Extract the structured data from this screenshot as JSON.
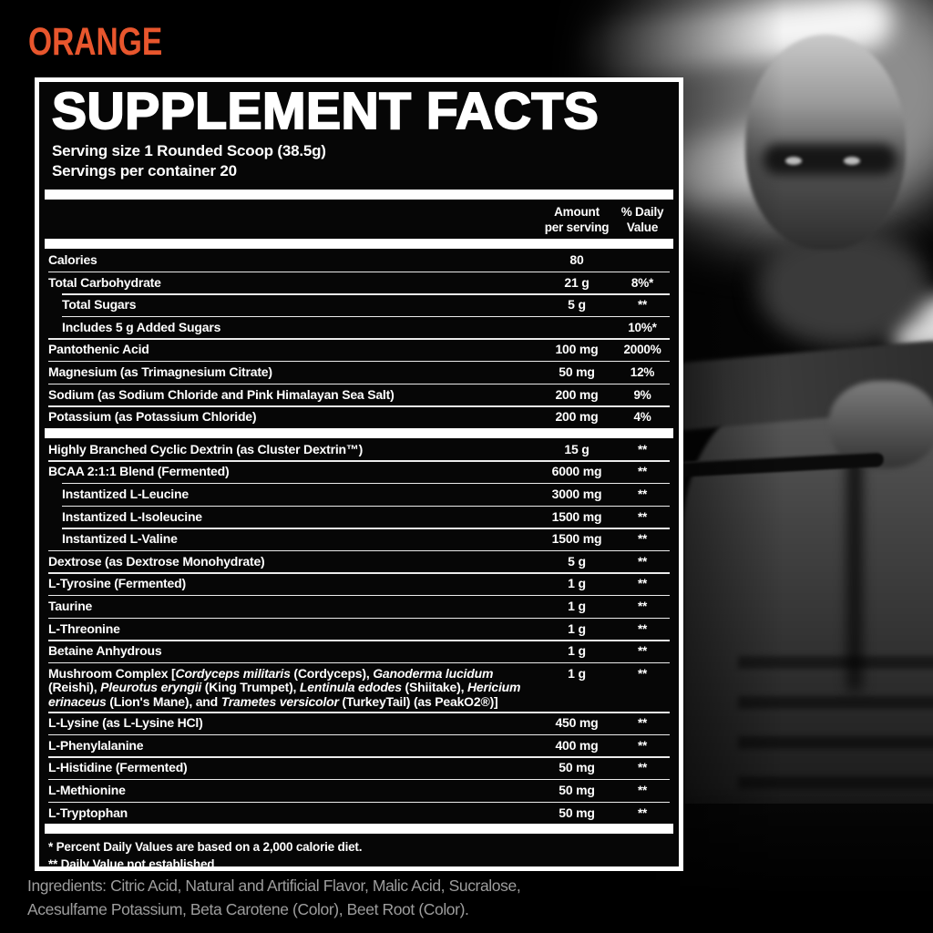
{
  "flavor": "ORANGE",
  "colors": {
    "accent_orange": "#E8562D",
    "ingredients_gray": "#9D9D9D",
    "panel_border": "#FFFFFF"
  },
  "panel": {
    "title": "SUPPLEMENT FACTS",
    "serving_size": "Serving size 1 Rounded Scoop (38.5g)",
    "servings_per_container": "Servings per container 20",
    "header": {
      "amount_line1": "Amount",
      "amount_line2": "per serving",
      "dv_line1": "% Daily",
      "dv_line2": "Value"
    },
    "rows": [
      {
        "name": "Calories",
        "amount": "80",
        "dv": "",
        "indent": false
      },
      {
        "name": "Total Carbohydrate",
        "amount": "21 g",
        "dv": "8%*",
        "indent": false
      },
      {
        "name": "Total Sugars",
        "amount": "5 g",
        "dv": "**",
        "indent": true
      },
      {
        "name": "Includes 5 g Added Sugars",
        "amount": "",
        "dv": "10%*",
        "indent": true
      },
      {
        "name": "Pantothenic Acid",
        "amount": "100 mg",
        "dv": "2000%",
        "indent": false
      },
      {
        "name": "Magnesium (as Trimagnesium Citrate)",
        "amount": "50 mg",
        "dv": "12%",
        "indent": false
      },
      {
        "name": "Sodium (as Sodium Chloride and Pink Himalayan Sea Salt)",
        "amount": "200 mg",
        "dv": "9%",
        "indent": false
      },
      {
        "name": "Potassium (as Potassium Chloride)",
        "amount": "200 mg",
        "dv": "4%",
        "indent": false,
        "bar_after": true
      },
      {
        "name": "Highly Branched Cyclic Dextrin (as Cluster Dextrin™)",
        "amount": "15 g",
        "dv": "**",
        "indent": false
      },
      {
        "name": "BCAA 2:1:1 Blend (Fermented)",
        "amount": "6000 mg",
        "dv": "**",
        "indent": false
      },
      {
        "name": "Instantized L-Leucine",
        "amount": "3000 mg",
        "dv": "**",
        "indent": true
      },
      {
        "name": "Instantized L-Isoleucine",
        "amount": "1500 mg",
        "dv": "**",
        "indent": true
      },
      {
        "name": "Instantized L-Valine",
        "amount": "1500 mg",
        "dv": "**",
        "indent": true
      },
      {
        "name": "Dextrose (as Dextrose Monohydrate)",
        "amount": "5 g",
        "dv": "**",
        "indent": false
      },
      {
        "name": "L-Tyrosine (Fermented)",
        "amount": "1 g",
        "dv": "**",
        "indent": false
      },
      {
        "name": "Taurine",
        "amount": "1 g",
        "dv": "**",
        "indent": false
      },
      {
        "name": "L-Threonine",
        "amount": "1 g",
        "dv": "**",
        "indent": false
      },
      {
        "name": "Betaine Anhydrous",
        "amount": "1 g",
        "dv": "**",
        "indent": false
      },
      {
        "segments": [
          {
            "t": "Mushroom Complex [",
            "i": false
          },
          {
            "t": "Cordyceps militaris",
            "i": true
          },
          {
            "t": " (Cordyceps), ",
            "i": false
          },
          {
            "t": "Ganoderma lucidum",
            "i": true
          },
          {
            "t": " (Reishi), ",
            "i": false
          },
          {
            "t": "Pleurotus eryngii",
            "i": true
          },
          {
            "t": " (King Trumpet), ",
            "i": false
          },
          {
            "t": "Lentinula edodes",
            "i": true
          },
          {
            "t": " (Shiitake), ",
            "i": false
          },
          {
            "t": "Hericium erinaceus",
            "i": true
          },
          {
            "t": " (Lion's Mane), and ",
            "i": false
          },
          {
            "t": "Trametes versicolor",
            "i": true
          },
          {
            "t": " (TurkeyTail) (as PeakO2®)]",
            "i": false
          }
        ],
        "amount": "1 g",
        "dv": "**",
        "indent": false
      },
      {
        "name": "L-Lysine (as L-Lysine HCl)",
        "amount": "450 mg",
        "dv": "**",
        "indent": false
      },
      {
        "name": "L-Phenylalanine",
        "amount": "400 mg",
        "dv": "**",
        "indent": false
      },
      {
        "name": "L-Histidine (Fermented)",
        "amount": "50 mg",
        "dv": "**",
        "indent": false
      },
      {
        "name": "L-Methionine",
        "amount": "50 mg",
        "dv": "**",
        "indent": false
      },
      {
        "name": "L-Tryptophan",
        "amount": "50 mg",
        "dv": "**",
        "indent": false,
        "bar_after": true
      }
    ],
    "footnotes": [
      "* Percent Daily Values are based on a 2,000 calorie diet.",
      "** Daily Value not established"
    ]
  },
  "ingredients": {
    "line1": "Ingredients: Citric Acid, Natural and Artificial Flavor, Malic Acid, Sucralose,",
    "line2": "Acesulfame Potassium, Beta Carotene (Color), Beet Root (Color)."
  }
}
